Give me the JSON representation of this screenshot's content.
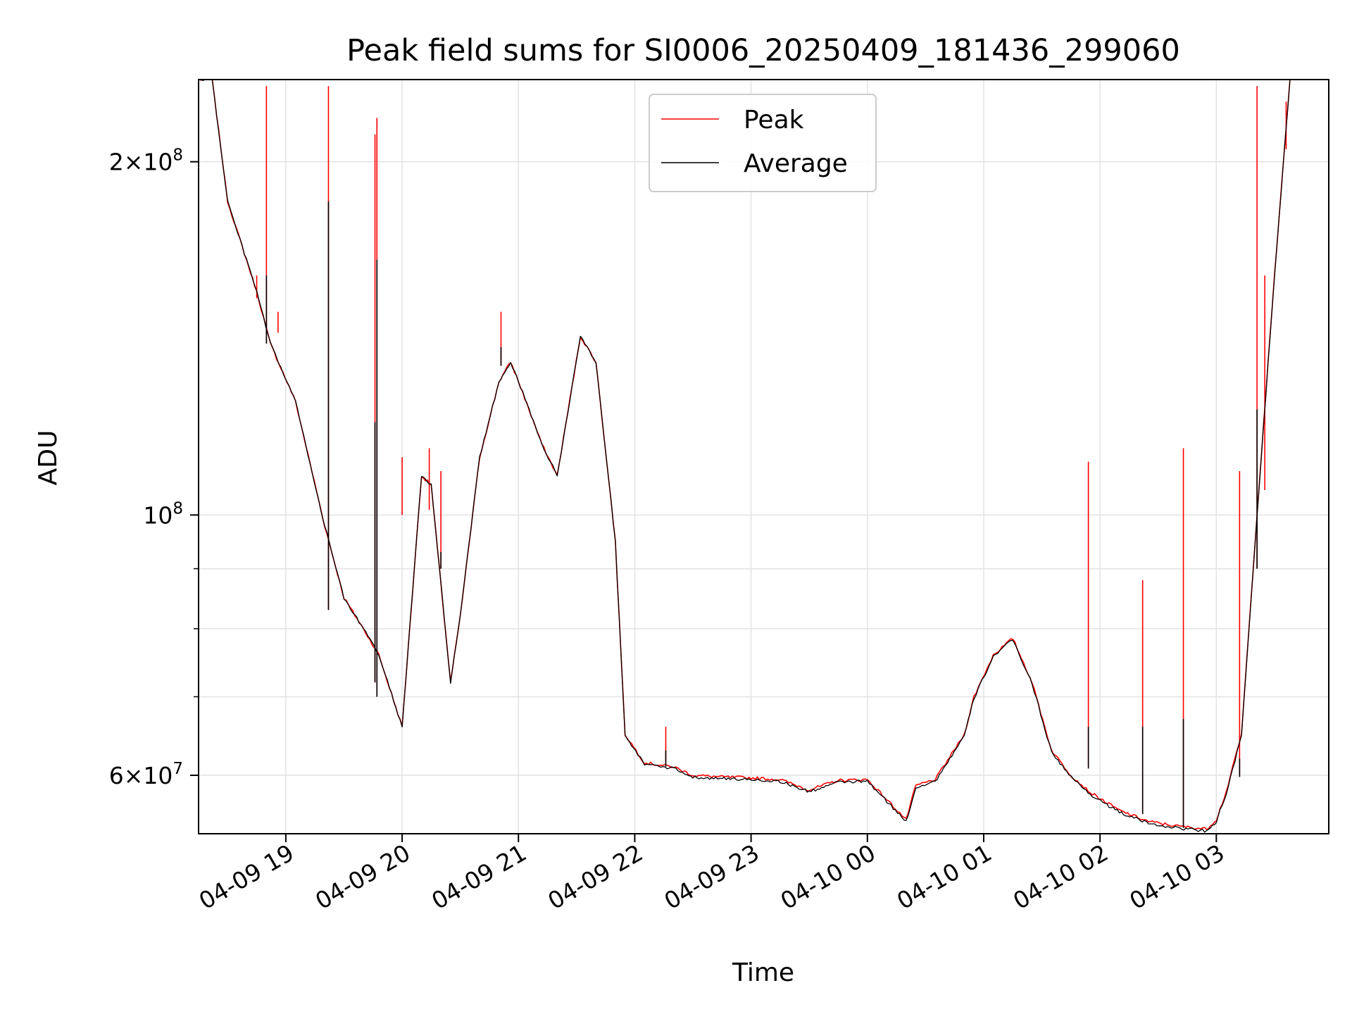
{
  "chart_data": {
    "type": "line",
    "title": "Peak field sums for SI0006_20250409_181436_299060",
    "xlabel": "Time",
    "ylabel": "ADU",
    "yscale": "log",
    "ylim": [
      53500000,
      235000000
    ],
    "xlim": [
      "04-09 18:15",
      "04-10 03:58"
    ],
    "grid": true,
    "legend_position": "top-center",
    "x_ticks": [
      "04-09 19",
      "04-09 20",
      "04-09 21",
      "04-09 22",
      "04-09 23",
      "04-10 00",
      "04-10 01",
      "04-10 02",
      "04-10 03"
    ],
    "y_ticks": [
      {
        "value": 60000000,
        "base": "6×10",
        "exp": "7"
      },
      {
        "value": 100000000,
        "base": "10",
        "exp": "8"
      },
      {
        "value": 200000000,
        "base": "2×10",
        "exp": "8"
      }
    ],
    "x": [
      "04-09 18:15",
      "04-09 18:22",
      "04-09 18:30",
      "04-09 18:45",
      "04-09 18:52",
      "04-09 19:05",
      "04-09 19:20",
      "04-09 19:30",
      "04-09 19:40",
      "04-09 19:48",
      "04-09 20:00",
      "04-09 20:10",
      "04-09 20:15",
      "04-09 20:25",
      "04-09 20:30",
      "04-09 20:40",
      "04-09 20:50",
      "04-09 20:56",
      "04-09 21:00",
      "04-09 21:12",
      "04-09 21:20",
      "04-09 21:32",
      "04-09 21:40",
      "04-09 21:50",
      "04-09 21:55",
      "04-09 22:05",
      "04-09 22:20",
      "04-09 22:30",
      "04-09 22:45",
      "04-09 23:00",
      "04-09 23:15",
      "04-09 23:30",
      "04-09 23:45",
      "04-10 00:00",
      "04-10 00:20",
      "04-10 00:25",
      "04-10 00:35",
      "04-10 00:50",
      "04-10 00:55",
      "04-10 01:05",
      "04-10 01:15",
      "04-10 01:25",
      "04-10 01:35",
      "04-10 01:45",
      "04-10 01:55",
      "04-10 02:10",
      "04-10 02:25",
      "04-10 02:40",
      "04-10 02:55",
      "04-10 03:00",
      "04-10 03:05",
      "04-10 03:13",
      "04-10 03:20",
      "04-10 03:30",
      "04-10 03:38"
    ],
    "series": [
      {
        "name": "Peak",
        "color": "#ff0000",
        "values": [
          235000000,
          235000000,
          185000000,
          155000000,
          140000000,
          125000000,
          98000000,
          85000000,
          80000000,
          76000000,
          66000000,
          108000000,
          106000000,
          72000000,
          82000000,
          112000000,
          130000000,
          135000000,
          130000000,
          115000000,
          108000000,
          142000000,
          135000000,
          95000000,
          65000000,
          61500000,
          61000000,
          60000000,
          59800000,
          59700000,
          59500000,
          58300000,
          59400000,
          59500000,
          55000000,
          58800000,
          59500000,
          65000000,
          70000000,
          76000000,
          78500000,
          72000000,
          63000000,
          60000000,
          58000000,
          56000000,
          54800000,
          54300000,
          54000000,
          55000000,
          58000000,
          65000000,
          95000000,
          160000000,
          235000000
        ]
      },
      {
        "name": "Average",
        "color": "#000000",
        "values": [
          235000000,
          235000000,
          185000000,
          155000000,
          140000000,
          125000000,
          98000000,
          85000000,
          80000000,
          76000000,
          66000000,
          108000000,
          106000000,
          72000000,
          82000000,
          112000000,
          130000000,
          135000000,
          130000000,
          115000000,
          108000000,
          142000000,
          135000000,
          95000000,
          65000000,
          61300000,
          60800000,
          59800000,
          59600000,
          59500000,
          59300000,
          58100000,
          59200000,
          59300000,
          54800000,
          58600000,
          59300000,
          64800000,
          69800000,
          75800000,
          78300000,
          71800000,
          62800000,
          59800000,
          57800000,
          55800000,
          54600000,
          54100000,
          53800000,
          54800000,
          57800000,
          64800000,
          94800000,
          159800000,
          235000000
        ]
      }
    ],
    "spikes": {
      "Peak": [
        {
          "x": "04-09 18:45",
          "base": 153000000,
          "top": 160000000
        },
        {
          "x": "04-09 18:50",
          "base": 140000000,
          "top": 232000000
        },
        {
          "x": "04-09 18:56",
          "base": 143000000,
          "top": 149000000
        },
        {
          "x": "04-09 19:22",
          "base": 83000000,
          "top": 232000000
        },
        {
          "x": "04-09 19:46",
          "base": 72000000,
          "top": 211000000
        },
        {
          "x": "04-09 19:47",
          "base": 70000000,
          "top": 218000000
        },
        {
          "x": "04-09 20:00",
          "base": 100000000,
          "top": 112000000
        },
        {
          "x": "04-09 20:14",
          "base": 101000000,
          "top": 114000000
        },
        {
          "x": "04-09 20:20",
          "base": 90000000,
          "top": 109000000
        },
        {
          "x": "04-09 20:51",
          "base": 134000000,
          "top": 149000000
        },
        {
          "x": "04-09 22:16",
          "base": 61500000,
          "top": 66000000
        },
        {
          "x": "04-10 01:54",
          "base": 61000000,
          "top": 111000000
        },
        {
          "x": "04-10 02:22",
          "base": 55800000,
          "top": 88000000
        },
        {
          "x": "04-10 02:43",
          "base": 54300000,
          "top": 114000000
        },
        {
          "x": "04-10 03:12",
          "base": 60000000,
          "top": 109000000
        },
        {
          "x": "04-10 03:21",
          "base": 90000000,
          "top": 232000000
        },
        {
          "x": "04-10 03:25",
          "base": 105000000,
          "top": 160000000
        },
        {
          "x": "04-10 03:36",
          "base": 205000000,
          "top": 225000000
        }
      ],
      "Average": [
        {
          "x": "04-09 18:50",
          "base": 140000000,
          "top": 160000000
        },
        {
          "x": "04-09 19:22",
          "base": 83000000,
          "top": 185000000
        },
        {
          "x": "04-09 19:46",
          "base": 72000000,
          "top": 120000000
        },
        {
          "x": "04-09 19:47",
          "base": 70000000,
          "top": 165000000
        },
        {
          "x": "04-09 20:20",
          "base": 90000000,
          "top": 93000000
        },
        {
          "x": "04-09 20:51",
          "base": 134000000,
          "top": 139000000
        },
        {
          "x": "04-09 22:16",
          "base": 61000000,
          "top": 63000000
        },
        {
          "x": "04-10 01:54",
          "base": 60800000,
          "top": 66000000
        },
        {
          "x": "04-10 02:22",
          "base": 55600000,
          "top": 66000000
        },
        {
          "x": "04-10 02:43",
          "base": 54100000,
          "top": 67000000
        },
        {
          "x": "04-10 03:12",
          "base": 59800000,
          "top": 62000000
        },
        {
          "x": "04-10 03:21",
          "base": 90000000,
          "top": 123000000
        }
      ]
    },
    "legend": [
      "Peak",
      "Average"
    ]
  }
}
